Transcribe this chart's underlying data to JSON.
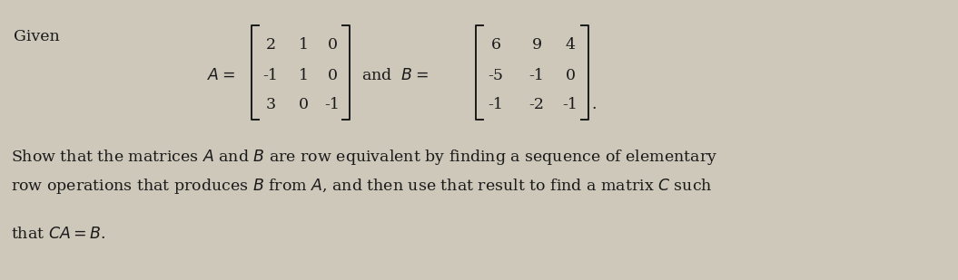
{
  "bg_color": "#cec8bb",
  "text_color": "#1a1a1a",
  "given_text": "Given",
  "A_matrix": [
    [
      2,
      1,
      0
    ],
    [
      -1,
      1,
      0
    ],
    [
      3,
      0,
      -1
    ]
  ],
  "B_matrix": [
    [
      6,
      9,
      4
    ],
    [
      -5,
      -1,
      0
    ],
    [
      -1,
      -2,
      -1
    ]
  ],
  "body_text_line1": "Show that the matrices $A$ and $B$ are row equivalent by finding a sequence of elementary",
  "body_text_line2": "row operations that produces $B$ from $A$, and then use that result to find a matrix $C$ such",
  "body_text_line3": "that $CA = B$.",
  "fontsize_main": 12.5,
  "fig_width": 10.55,
  "fig_height": 3.09
}
